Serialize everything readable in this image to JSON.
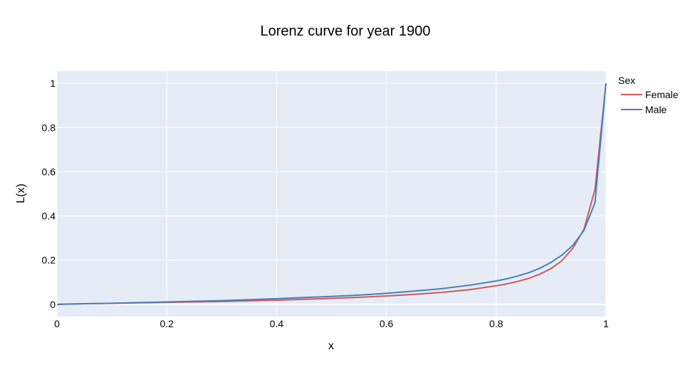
{
  "chart_data": {
    "type": "line",
    "title": "Lorenz curve for year 1900",
    "xlabel": "x",
    "ylabel": "L(x)",
    "xlim": [
      0,
      1
    ],
    "ylim": [
      -0.055,
      1.055
    ],
    "xticks": [
      0,
      0.2,
      0.4,
      0.6,
      0.8,
      1
    ],
    "xtick_labels": [
      "0",
      "0.2",
      "0.4",
      "0.6",
      "0.8",
      "1"
    ],
    "yticks": [
      0,
      0.2,
      0.4,
      0.6,
      0.8,
      1
    ],
    "ytick_labels": [
      "0",
      "0.2",
      "0.4",
      "0.6",
      "0.8",
      "1"
    ],
    "grid": true,
    "legend": {
      "title": "Sex",
      "position": "top-right"
    },
    "plot_background": "#e5ecf6",
    "series": [
      {
        "name": "Female",
        "color": "#d05a5a",
        "x": [
          0,
          0.05,
          0.1,
          0.15,
          0.2,
          0.25,
          0.3,
          0.35,
          0.4,
          0.45,
          0.5,
          0.55,
          0.6,
          0.65,
          0.7,
          0.75,
          0.8,
          0.82,
          0.84,
          0.86,
          0.88,
          0.9,
          0.92,
          0.94,
          0.96,
          0.98,
          1
        ],
        "y": [
          0,
          0.003,
          0.005,
          0.007,
          0.009,
          0.011,
          0.013,
          0.016,
          0.019,
          0.023,
          0.027,
          0.032,
          0.038,
          0.045,
          0.054,
          0.066,
          0.084,
          0.093,
          0.104,
          0.118,
          0.137,
          0.162,
          0.198,
          0.255,
          0.34,
          0.52,
          1
        ]
      },
      {
        "name": "Male",
        "color": "#4a7fb8",
        "x": [
          0,
          0.05,
          0.1,
          0.15,
          0.2,
          0.25,
          0.3,
          0.35,
          0.4,
          0.45,
          0.5,
          0.55,
          0.6,
          0.65,
          0.7,
          0.75,
          0.8,
          0.82,
          0.84,
          0.86,
          0.88,
          0.9,
          0.92,
          0.94,
          0.96,
          0.98,
          1
        ],
        "y": [
          0,
          0.003,
          0.005,
          0.008,
          0.011,
          0.014,
          0.017,
          0.021,
          0.026,
          0.031,
          0.036,
          0.042,
          0.05,
          0.06,
          0.071,
          0.086,
          0.106,
          0.116,
          0.129,
          0.144,
          0.164,
          0.19,
          0.223,
          0.268,
          0.335,
          0.46,
          1
        ]
      }
    ]
  }
}
